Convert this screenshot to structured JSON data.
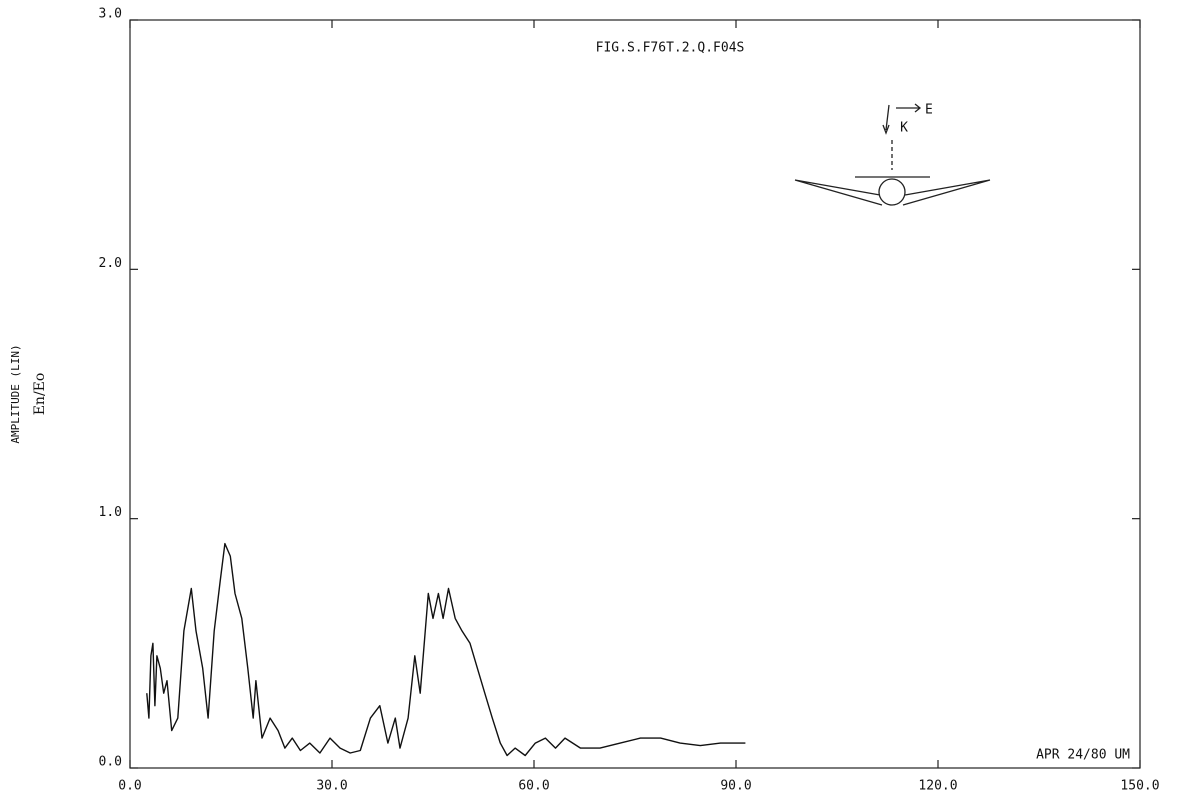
{
  "chart_data": {
    "type": "line",
    "title": "FIG.S.F76T.2.Q.F04S",
    "y_label": "AMPLITUDE (LIN)",
    "y_sublabel": "En/Eo",
    "annotation": "APR 24/80 UM",
    "diagram_labels": [
      "E",
      "K"
    ],
    "color": "#111111",
    "x": [
      2.5,
      2.8,
      3.1,
      3.4,
      3.7,
      4.0,
      4.5,
      5.0,
      5.5,
      6.2,
      7.1,
      8.0,
      9.1,
      9.8,
      10.8,
      11.6,
      12.5,
      13.4,
      14.1,
      14.9,
      15.6,
      16.6,
      17.5,
      18.3,
      18.7,
      19.6,
      20.8,
      22.0,
      23.0,
      24.1,
      25.3,
      26.7,
      28.2,
      29.7,
      31.2,
      32.7,
      34.2,
      35.7,
      37.1,
      38.3,
      39.4,
      40.1,
      41.3,
      42.3,
      43.1,
      44.3,
      45.0,
      45.8,
      46.5,
      47.3,
      48.3,
      49.3,
      50.5,
      51.6,
      52.7,
      53.8,
      55.0,
      56.0,
      57.2,
      58.7,
      60.2,
      61.7,
      63.2,
      64.6,
      66.9,
      69.8,
      72.8,
      75.8,
      78.8,
      81.7,
      84.7,
      87.7,
      91.4
    ],
    "values": [
      0.3,
      0.2,
      0.45,
      0.5,
      0.25,
      0.45,
      0.4,
      0.3,
      0.35,
      0.15,
      0.2,
      0.55,
      0.72,
      0.55,
      0.4,
      0.2,
      0.55,
      0.75,
      0.9,
      0.85,
      0.7,
      0.6,
      0.4,
      0.2,
      0.35,
      0.12,
      0.2,
      0.15,
      0.08,
      0.12,
      0.07,
      0.1,
      0.06,
      0.12,
      0.08,
      0.06,
      0.07,
      0.2,
      0.25,
      0.1,
      0.2,
      0.08,
      0.2,
      0.45,
      0.3,
      0.7,
      0.6,
      0.7,
      0.6,
      0.72,
      0.6,
      0.55,
      0.5,
      0.4,
      0.3,
      0.2,
      0.1,
      0.05,
      0.08,
      0.05,
      0.1,
      0.12,
      0.08,
      0.12,
      0.08,
      0.08,
      0.1,
      0.12,
      0.12,
      0.1,
      0.09,
      0.1,
      0.1
    ],
    "xlim": [
      0,
      150
    ],
    "xticks": [
      {
        "value": 0,
        "label": "0.0"
      },
      {
        "value": 30,
        "label": "30.0"
      },
      {
        "value": 60,
        "label": "60.0"
      },
      {
        "value": 90,
        "label": "90.0"
      },
      {
        "value": 120,
        "label": "120.0"
      },
      {
        "value": 150,
        "label": "150.0"
      }
    ],
    "ylim": [
      0,
      3
    ],
    "yticks": [
      {
        "value": 0,
        "label": "0.0"
      },
      {
        "value": 1,
        "label": "1.0"
      },
      {
        "value": 2,
        "label": "2.0"
      },
      {
        "value": 3,
        "label": "3.0"
      }
    ]
  }
}
